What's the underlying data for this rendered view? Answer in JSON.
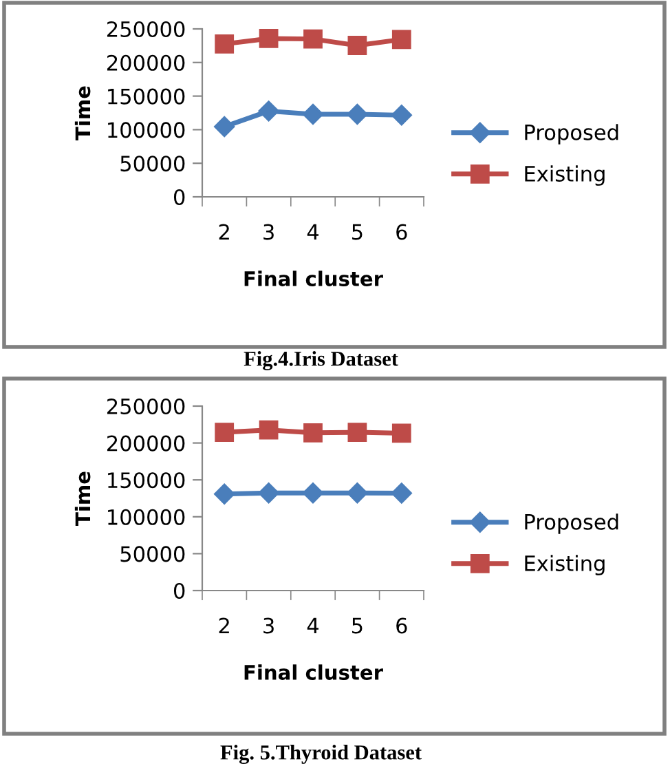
{
  "chart_data": [
    {
      "type": "line",
      "categories": [
        "2",
        "3",
        "4",
        "5",
        "6"
      ],
      "xlabel": "Final cluster",
      "ylabel": "Time",
      "ylim": [
        0,
        250000
      ],
      "yticks": [
        0,
        50000,
        100000,
        150000,
        200000,
        250000
      ],
      "grid": false,
      "legend": "right",
      "annotations": [
        "Fig.4.Iris Dataset"
      ],
      "series": [
        {
          "name": "Proposed",
          "color": "#4a7ebb",
          "marker": "diamond",
          "values": [
            104500,
            127700,
            123000,
            123000,
            121600
          ]
        },
        {
          "name": "Existing",
          "color": "#be4b48",
          "marker": "square",
          "values": [
            227500,
            235700,
            235000,
            225400,
            234300
          ]
        }
      ]
    },
    {
      "type": "line",
      "categories": [
        "2",
        "3",
        "4",
        "5",
        "6"
      ],
      "xlabel": "Final cluster",
      "ylabel": "Time",
      "ylim": [
        0,
        250000
      ],
      "yticks": [
        0,
        50000,
        100000,
        150000,
        200000,
        250000
      ],
      "grid": false,
      "legend": "right",
      "annotations": [
        "Fig. 5.Thyroid Dataset"
      ],
      "series": [
        {
          "name": "Proposed",
          "color": "#4a7ebb",
          "marker": "diamond",
          "values": [
            130900,
            132200,
            132200,
            132200,
            132000
          ]
        },
        {
          "name": "Existing",
          "color": "#be4b48",
          "marker": "square",
          "values": [
            214500,
            217600,
            213800,
            214500,
            213200
          ]
        }
      ]
    }
  ]
}
